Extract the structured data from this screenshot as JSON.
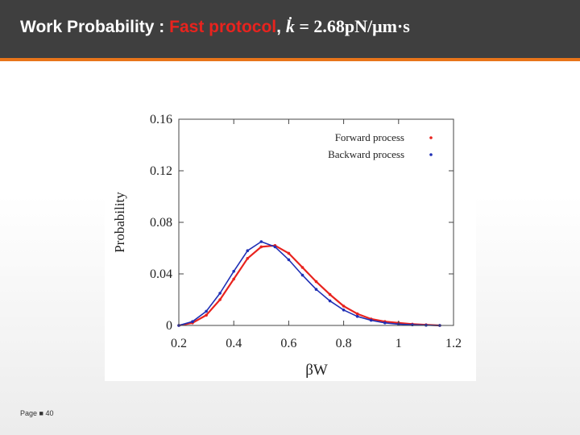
{
  "slide": {
    "title_prefix": "Work Probability : ",
    "title_highlight": "Fast protocol",
    "title_sep": ",",
    "title_k": "k",
    "title_equation": " = 2.68pN/μm·s",
    "footer_label": "Page",
    "footer_page": "40",
    "colors": {
      "header_bg": "#3f3f3f",
      "header_rule": "#e8751a",
      "highlight": "#e8231e"
    }
  },
  "chart_data": {
    "type": "line",
    "xlabel": "βW",
    "ylabel": "Probability",
    "xlim": [
      0.2,
      1.2
    ],
    "ylim": [
      0,
      0.16
    ],
    "xticks": [
      0.2,
      0.4,
      0.6,
      0.8,
      1,
      1.2
    ],
    "xtick_labels": [
      "0.2",
      "0.4",
      "0.6",
      "0.8",
      "1",
      "1.2"
    ],
    "yticks": [
      0,
      0.04,
      0.08,
      0.12,
      0.16
    ],
    "ytick_labels": [
      "0",
      "0.04",
      "0.08",
      "0.12",
      "0.16"
    ],
    "grid": false,
    "legend_position": "top-right",
    "series": [
      {
        "name": "Forward process",
        "color": "#e8231e",
        "marker": "dot",
        "x": [
          0.2,
          0.25,
          0.3,
          0.35,
          0.4,
          0.45,
          0.5,
          0.55,
          0.6,
          0.65,
          0.7,
          0.75,
          0.8,
          0.85,
          0.9,
          0.95,
          1.0,
          1.05,
          1.1,
          1.15
        ],
        "y": [
          0.0,
          0.002,
          0.008,
          0.02,
          0.036,
          0.052,
          0.061,
          0.062,
          0.056,
          0.045,
          0.034,
          0.024,
          0.015,
          0.009,
          0.005,
          0.003,
          0.002,
          0.001,
          0.0005,
          0.0
        ]
      },
      {
        "name": "Backward process",
        "color": "#1f2fb5",
        "marker": "dot",
        "x": [
          0.2,
          0.25,
          0.3,
          0.35,
          0.4,
          0.45,
          0.5,
          0.55,
          0.6,
          0.65,
          0.7,
          0.75,
          0.8,
          0.85,
          0.9,
          0.95,
          1.0,
          1.05,
          1.1,
          1.15
        ],
        "y": [
          0.0,
          0.003,
          0.011,
          0.025,
          0.042,
          0.058,
          0.065,
          0.061,
          0.051,
          0.039,
          0.028,
          0.019,
          0.012,
          0.007,
          0.004,
          0.002,
          0.001,
          0.0005,
          0.0002,
          0.0
        ]
      }
    ]
  }
}
